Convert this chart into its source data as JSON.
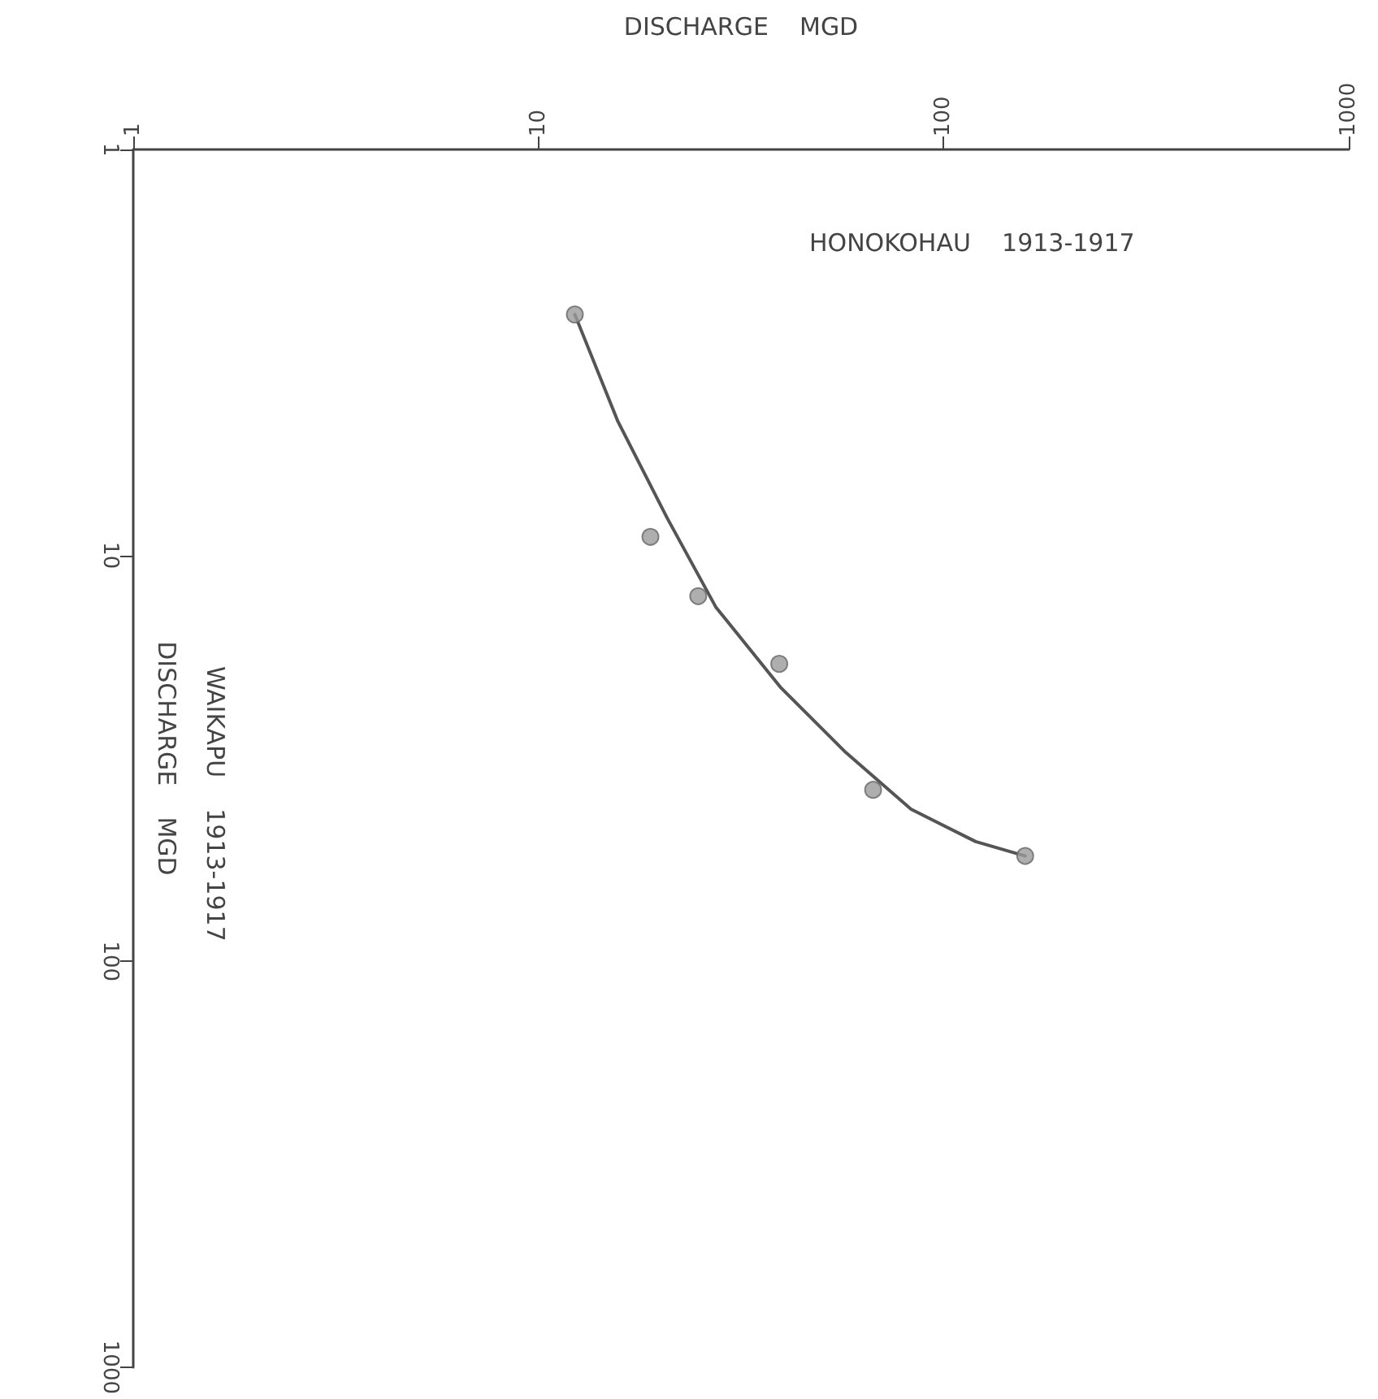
{
  "chart_data": {
    "type": "scatter",
    "xlabel": "DISCHARGE    MGD",
    "ylabel": "DISCHARGE    MGD",
    "annotations": [
      "HONOKOHAU    1913-1917",
      "WAIKAPU    1913-1917"
    ],
    "log": "xy",
    "xlim": [
      1,
      1000
    ],
    "xticks": [
      1,
      10,
      100,
      1000
    ],
    "ylim": [
      1000,
      1
    ],
    "yticks": [
      1,
      10,
      100,
      1000
    ],
    "grid": false,
    "marker": "circle",
    "series": [
      {
        "color": "#9a9a9a",
        "x": [
          12.3,
          18.9,
          24.8,
          39.3,
          67,
          159
        ],
        "values": [
          2.55,
          9.0,
          12.6,
          18.5,
          37.8,
          55
        ]
      },
      {
        "type": "line",
        "color": "#555555",
        "marker": "none",
        "line_style": "solid",
        "x": [
          12.3,
          15.7,
          20.8,
          27.4,
          39.7,
          57.4,
          83.1,
          120,
          159
        ],
        "values": [
          2.55,
          4.67,
          8.1,
          13.4,
          21.2,
          30.6,
          42.2,
          50.7,
          55
        ]
      }
    ]
  }
}
